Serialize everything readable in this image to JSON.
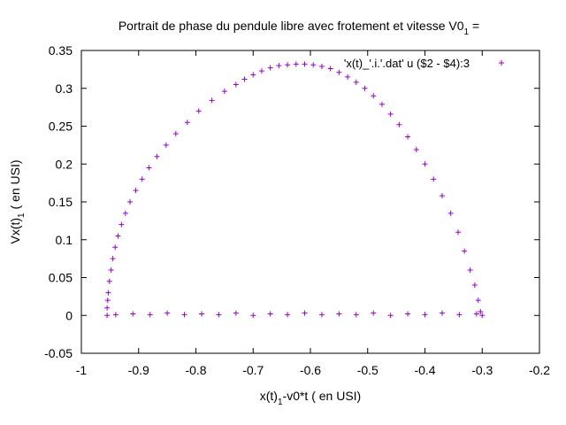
{
  "chart_data": {
    "type": "scatter",
    "title": "Portrait de phase du pendule libre avec frotement et vitesse V0",
    "title_subscript": "1",
    "title_suffix": " =",
    "xlabel": "x(t)",
    "xlabel_subscript": "1",
    "xlabel_suffix": "-v0*t ( en USI)",
    "ylabel": "Vx(t)",
    "ylabel_subscript": "1",
    "ylabel_suffix": " ( en USI)",
    "xlim": [
      -1,
      -0.2
    ],
    "ylim": [
      -0.05,
      0.35
    ],
    "xticks": [
      "-1",
      "-0.9",
      "-0.8",
      "-0.7",
      "-0.6",
      "-0.5",
      "-0.4",
      "-0.3",
      "-0.2"
    ],
    "yticks": [
      "-0.05",
      "0",
      "0.05",
      "0.1",
      "0.15",
      "0.2",
      "0.25",
      "0.3",
      "0.35"
    ],
    "grid": false,
    "legend_position": "top-right",
    "marker": "+",
    "series": [
      {
        "name": "'x(t)_'.i.'.dat' u ($2 - $4):3",
        "color": "#9400d3",
        "points": [
          [
            -0.955,
            0.0
          ],
          [
            -0.955,
            0.01
          ],
          [
            -0.954,
            0.02
          ],
          [
            -0.953,
            0.03
          ],
          [
            -0.951,
            0.045
          ],
          [
            -0.948,
            0.06
          ],
          [
            -0.945,
            0.075
          ],
          [
            -0.941,
            0.09
          ],
          [
            -0.936,
            0.105
          ],
          [
            -0.93,
            0.12
          ],
          [
            -0.923,
            0.135
          ],
          [
            -0.915,
            0.15
          ],
          [
            -0.905,
            0.165
          ],
          [
            -0.894,
            0.18
          ],
          [
            -0.882,
            0.195
          ],
          [
            -0.868,
            0.21
          ],
          [
            -0.852,
            0.225
          ],
          [
            -0.835,
            0.24
          ],
          [
            -0.815,
            0.255
          ],
          [
            -0.795,
            0.27
          ],
          [
            -0.772,
            0.284
          ],
          [
            -0.75,
            0.296
          ],
          [
            -0.73,
            0.305
          ],
          [
            -0.715,
            0.312
          ],
          [
            -0.7,
            0.318
          ],
          [
            -0.685,
            0.323
          ],
          [
            -0.67,
            0.327
          ],
          [
            -0.655,
            0.33
          ],
          [
            -0.64,
            0.331
          ],
          [
            -0.625,
            0.332
          ],
          [
            -0.61,
            0.332
          ],
          [
            -0.595,
            0.331
          ],
          [
            -0.58,
            0.329
          ],
          [
            -0.565,
            0.326
          ],
          [
            -0.55,
            0.321
          ],
          [
            -0.535,
            0.315
          ],
          [
            -0.52,
            0.308
          ],
          [
            -0.505,
            0.3
          ],
          [
            -0.49,
            0.29
          ],
          [
            -0.475,
            0.279
          ],
          [
            -0.46,
            0.266
          ],
          [
            -0.445,
            0.252
          ],
          [
            -0.43,
            0.236
          ],
          [
            -0.415,
            0.219
          ],
          [
            -0.4,
            0.2
          ],
          [
            -0.385,
            0.18
          ],
          [
            -0.37,
            0.158
          ],
          [
            -0.355,
            0.135
          ],
          [
            -0.342,
            0.11
          ],
          [
            -0.331,
            0.085
          ],
          [
            -0.321,
            0.06
          ],
          [
            -0.313,
            0.04
          ],
          [
            -0.307,
            0.02
          ],
          [
            -0.303,
            0.005
          ],
          [
            -0.3,
            0.0
          ],
          [
            -0.31,
            0.002
          ],
          [
            -0.34,
            0.001
          ],
          [
            -0.37,
            0.003
          ],
          [
            -0.4,
            0.001
          ],
          [
            -0.43,
            0.002
          ],
          [
            -0.46,
            0.0
          ],
          [
            -0.49,
            0.003
          ],
          [
            -0.52,
            0.001
          ],
          [
            -0.55,
            0.002
          ],
          [
            -0.58,
            0.001
          ],
          [
            -0.61,
            0.003
          ],
          [
            -0.64,
            0.001
          ],
          [
            -0.67,
            0.002
          ],
          [
            -0.7,
            0.0
          ],
          [
            -0.73,
            0.003
          ],
          [
            -0.76,
            0.001
          ],
          [
            -0.79,
            0.002
          ],
          [
            -0.82,
            0.001
          ],
          [
            -0.85,
            0.003
          ],
          [
            -0.88,
            0.001
          ],
          [
            -0.91,
            0.002
          ],
          [
            -0.94,
            0.001
          ]
        ]
      }
    ]
  }
}
